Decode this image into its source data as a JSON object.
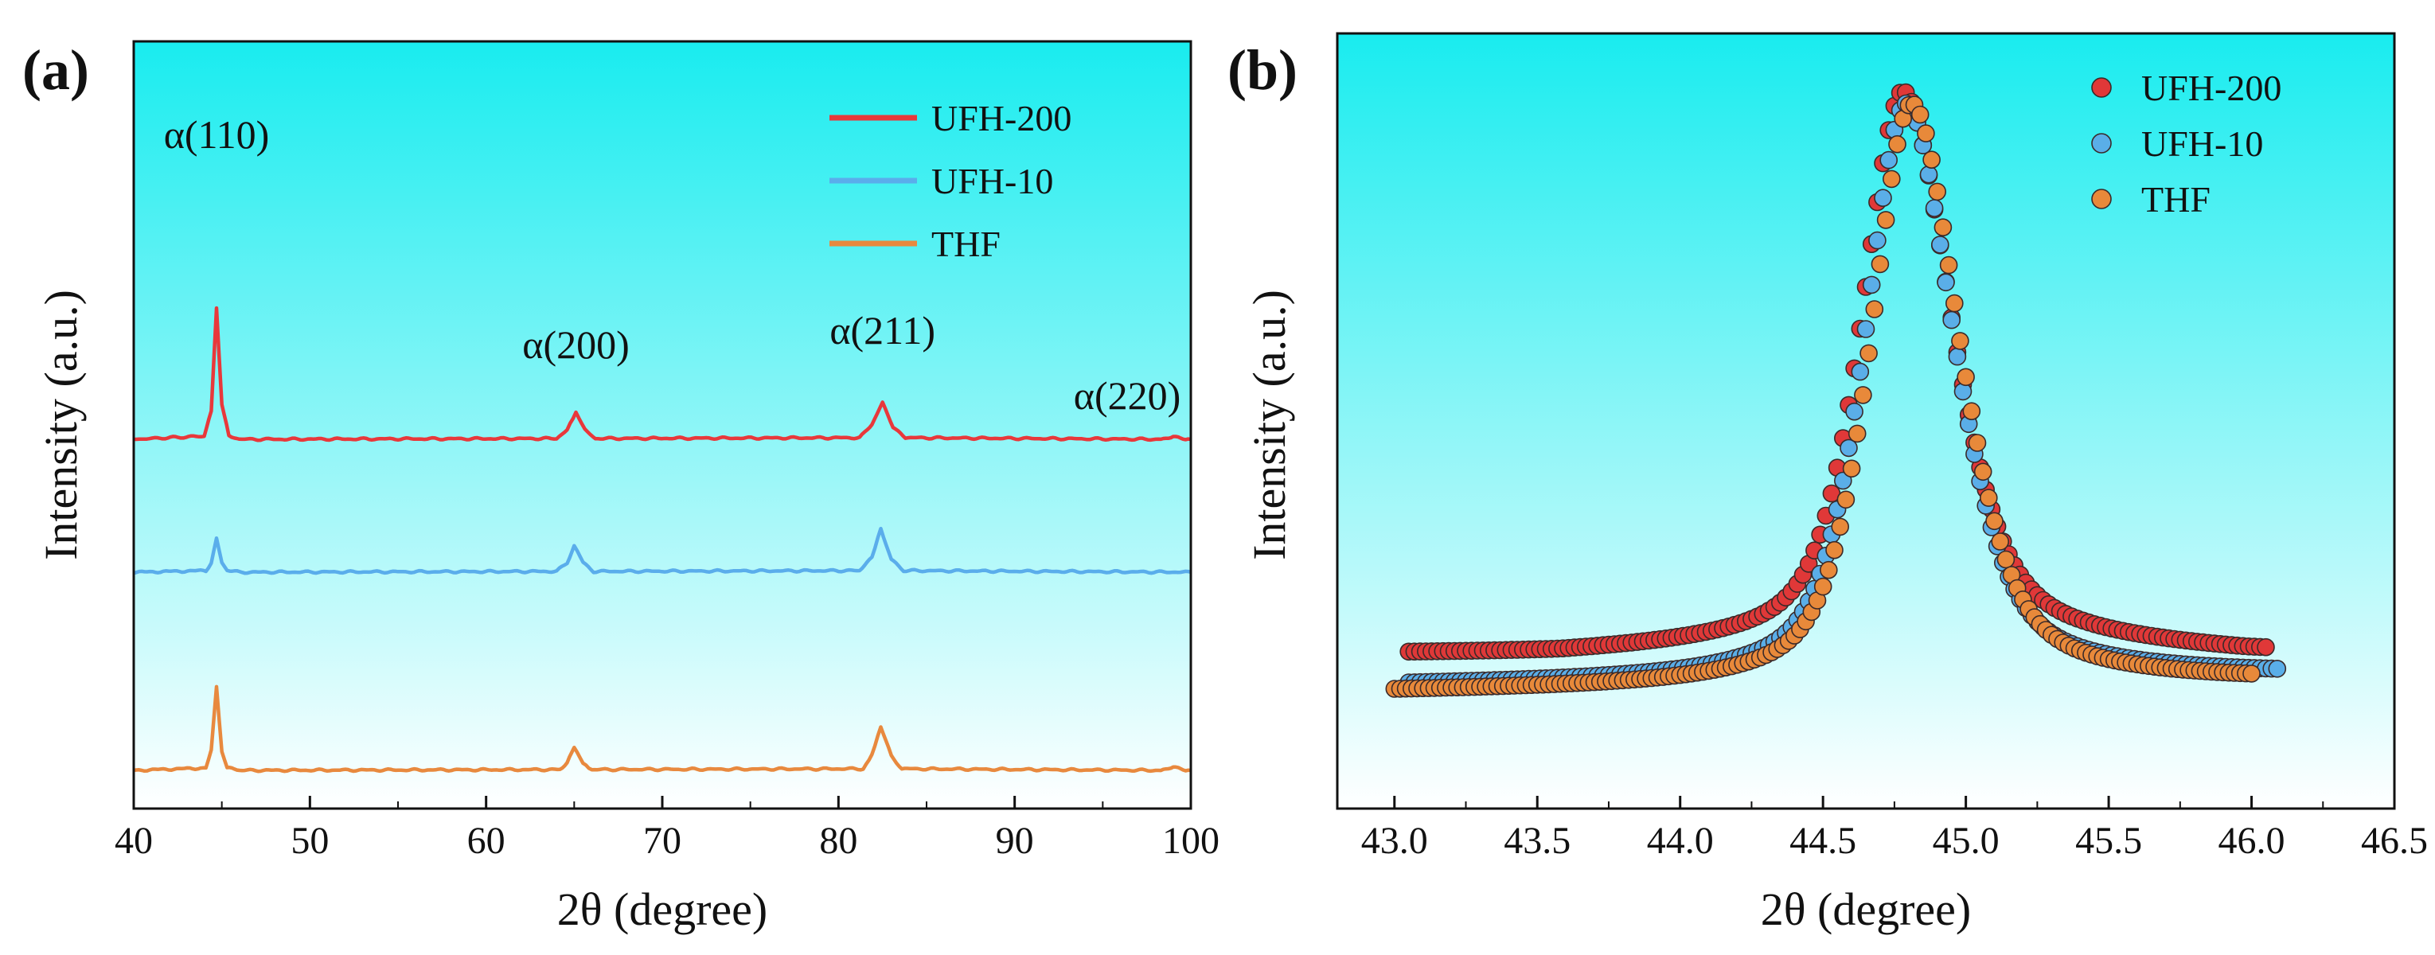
{
  "chart_data": [
    {
      "panel_label": "(a)",
      "type": "line",
      "xlabel": "2θ (degree)",
      "ylabel": "Intensity (a.u.)",
      "xlim": [
        40,
        100
      ],
      "xticks": [
        40,
        50,
        60,
        70,
        80,
        90,
        100
      ],
      "yticks_shown": false,
      "legend": {
        "position": "top-right",
        "style": "line"
      },
      "background": {
        "top": "#19ECEF",
        "bottom": "#FFFFFF",
        "style": "vertical-gradient"
      },
      "series": [
        {
          "name": "UFH-200",
          "color": "#E8383B",
          "baseline_offset": 2.0,
          "x": [
            40,
            44.0,
            44.4,
            44.7,
            45.0,
            45.4,
            46,
            64.0,
            64.6,
            65.1,
            65.6,
            66.2,
            81.2,
            81.9,
            82.5,
            83.1,
            83.8,
            98.3,
            99.0,
            99.7,
            100
          ],
          "y": [
            0.0,
            0.04,
            0.35,
            1.65,
            0.45,
            0.05,
            0.0,
            0.01,
            0.12,
            0.33,
            0.12,
            0.01,
            0.02,
            0.18,
            0.46,
            0.16,
            0.02,
            0.0,
            0.04,
            0.0,
            0.0
          ]
        },
        {
          "name": "UFH-10",
          "color": "#5AADEB",
          "baseline_offset": 1.0,
          "x": [
            40,
            44.1,
            44.4,
            44.7,
            45.0,
            45.3,
            46,
            64.0,
            64.6,
            65.0,
            65.5,
            66.1,
            81.2,
            81.9,
            82.4,
            83.0,
            83.7,
            100
          ],
          "y": [
            0.0,
            0.02,
            0.12,
            0.42,
            0.12,
            0.02,
            0.0,
            0.01,
            0.12,
            0.33,
            0.12,
            0.01,
            0.02,
            0.18,
            0.55,
            0.16,
            0.02,
            0.0
          ]
        },
        {
          "name": "THF",
          "color": "#E8893E",
          "baseline_offset": 0.0,
          "x": [
            40,
            44.1,
            44.4,
            44.7,
            45.0,
            45.3,
            46,
            64.2,
            64.6,
            65.0,
            65.5,
            66.0,
            81.4,
            81.9,
            82.4,
            83.0,
            83.6,
            98.3,
            99.0,
            99.7,
            100
          ],
          "y": [
            0.0,
            0.03,
            0.25,
            1.05,
            0.25,
            0.03,
            0.0,
            0.01,
            0.1,
            0.3,
            0.1,
            0.01,
            0.02,
            0.2,
            0.55,
            0.18,
            0.02,
            0.0,
            0.05,
            0.0,
            0.0
          ]
        }
      ],
      "annotations": [
        {
          "text": "α(110)",
          "x": 44.7
        },
        {
          "text": "α(200)",
          "x": 65.1
        },
        {
          "text": "α(211)",
          "x": 82.5
        },
        {
          "text": "α(220)",
          "x": 99.0
        }
      ]
    },
    {
      "panel_label": "(b)",
      "type": "scatter",
      "xlabel": "2θ (degree)",
      "ylabel": "Intensity (a.u.)",
      "xlim": [
        42.8,
        46.5
      ],
      "xticks": [
        "43.0",
        "43.5",
        "44.0",
        "44.5",
        "45.0",
        "45.5",
        "46.0",
        "46.5"
      ],
      "yticks_shown": false,
      "legend": {
        "position": "top-right",
        "style": "marker"
      },
      "background": {
        "top": "#19ECEF",
        "bottom": "#FFFFFF",
        "style": "vertical-gradient"
      },
      "peak_profile": {
        "center": 44.8,
        "hwhm_left": 0.17,
        "hwhm_right": 0.2,
        "x_step": 0.02
      },
      "series": [
        {
          "name": "UFH-200",
          "color": "#E03838",
          "x_range": [
            43.05,
            46.05
          ],
          "baseline": 0.11,
          "baseline_slope": 0.0,
          "peak": 1.0,
          "center": 44.78,
          "shoulder": 0.02
        },
        {
          "name": "UFH-10",
          "color": "#5AAEE8",
          "x_range": [
            43.05,
            46.1
          ],
          "baseline": 0.06,
          "baseline_slope": 0.005,
          "peak": 1.0,
          "center": 44.79,
          "shoulder": 0.0
        },
        {
          "name": "THF",
          "color": "#E8893A",
          "x_range": [
            43.0,
            46.0
          ],
          "baseline": 0.05,
          "baseline_slope": 0.005,
          "peak": 1.0,
          "center": 44.81,
          "shoulder": 0.0
        }
      ]
    }
  ]
}
